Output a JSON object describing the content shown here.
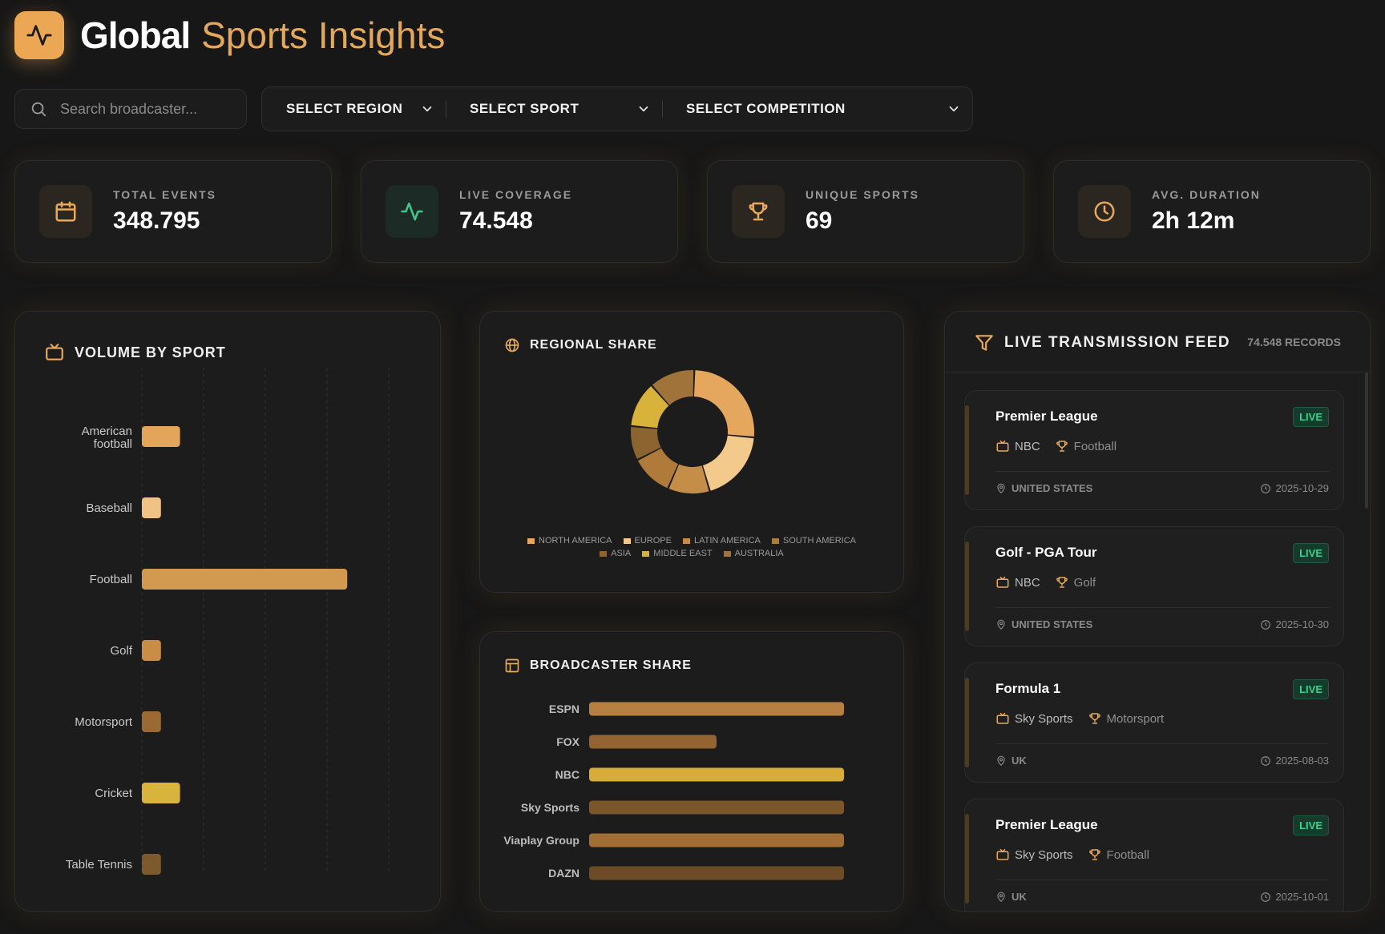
{
  "app": {
    "title_bold": "Global",
    "title_light": "Sports Insights"
  },
  "search": {
    "placeholder": "Search broadcaster..."
  },
  "filters": {
    "region": "SELECT REGION",
    "sport": "SELECT SPORT",
    "competition": "SELECT COMPETITION"
  },
  "kpis": [
    {
      "label": "TOTAL EVENTS",
      "value": "348.795",
      "icon": "calendar-icon"
    },
    {
      "label": "LIVE COVERAGE",
      "value": "74.548",
      "icon": "activity-icon"
    },
    {
      "label": "UNIQUE SPORTS",
      "value": "69",
      "icon": "trophy-icon"
    },
    {
      "label": "AVG. DURATION",
      "value": "2h 12m",
      "icon": "clock-icon"
    }
  ],
  "volume": {
    "title": "VOLUME BY SPORT"
  },
  "regional": {
    "title": "REGIONAL SHARE"
  },
  "broadcaster": {
    "title": "BROADCASTER SHARE"
  },
  "feed": {
    "title": "LIVE TRANSMISSION FEED",
    "records": "74.548 RECORDS",
    "items": [
      {
        "competition": "Premier League",
        "badge": "LIVE",
        "broadcaster": "NBC",
        "sport": "Football",
        "location": "UNITED STATES",
        "date": "2025-10-29"
      },
      {
        "competition": "Golf - PGA Tour",
        "badge": "LIVE",
        "broadcaster": "NBC",
        "sport": "Golf",
        "location": "UNITED STATES",
        "date": "2025-10-30"
      },
      {
        "competition": "Formula 1",
        "badge": "LIVE",
        "broadcaster": "Sky Sports",
        "sport": "Motorsport",
        "location": "UK",
        "date": "2025-08-03"
      },
      {
        "competition": "Premier League",
        "badge": "LIVE",
        "broadcaster": "Sky Sports",
        "sport": "Football",
        "location": "UK",
        "date": "2025-10-01"
      }
    ]
  },
  "colors": {
    "accent": "#eba754",
    "live_green": "#3ed18d",
    "background": "#171717"
  },
  "chart_data": [
    {
      "type": "bar",
      "orientation": "horizontal",
      "categories": [
        "American football",
        "Baseball",
        "Football",
        "Golf",
        "Motorsport",
        "Cricket",
        "Table Tennis"
      ],
      "values": [
        3.4,
        1.7,
        18.3,
        1.7,
        1.7,
        3.4,
        1.7
      ],
      "colors": [
        "#e3a55a",
        "#f0c283",
        "#d29a50",
        "#c98d45",
        "#9a6a32",
        "#d9b43c",
        "#7d5a2e"
      ],
      "xlim": [
        0,
        20
      ],
      "grid": true
    },
    {
      "type": "pie",
      "variant": "donut",
      "labels": [
        "NORTH AMERICA",
        "EUROPE",
        "LATIN AMERICA",
        "SOUTH AMERICA",
        "ASIA",
        "MIDDLE EAST",
        "AUSTRALIA"
      ],
      "values": [
        26,
        19,
        11,
        11,
        9,
        12,
        12
      ],
      "colors": [
        "#e5a75e",
        "#f3c98c",
        "#c58e48",
        "#b07a3a",
        "#8c6430",
        "#d8b23a",
        "#a0733a"
      ],
      "legend": "bottom"
    },
    {
      "type": "bar",
      "orientation": "horizontal",
      "categories": [
        "ESPN",
        "FOX",
        "NBC",
        "Sky Sports",
        "Viaplay Group",
        "DAZN"
      ],
      "values": [
        100,
        50,
        100,
        100,
        100,
        100
      ],
      "colors": [
        "#b78043",
        "#946332",
        "#d8ac39",
        "#7b562b",
        "#a16f35",
        "#6c4b26"
      ],
      "xlim": [
        0,
        100
      ]
    }
  ]
}
